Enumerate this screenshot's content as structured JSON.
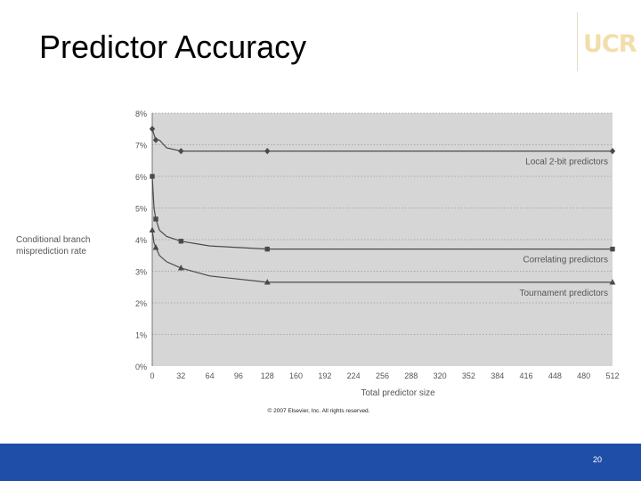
{
  "slide": {
    "title": "Predictor Accuracy",
    "logo_text": "UCR",
    "page_number": "20"
  },
  "colors": {
    "plot_bg": "#d6d6d6",
    "series": "#4a4a4a",
    "axis_text": "#555555",
    "footer": "#1f4ea8",
    "logo": "#f2deaa"
  },
  "chart_data": {
    "type": "line",
    "ylabel": [
      "Conditional branch",
      "misprediction rate"
    ],
    "xlabel": "Total predictor size",
    "copyright": "© 2007 Elsevier, Inc. All rights reserved.",
    "x_ticks": [
      0,
      32,
      64,
      96,
      128,
      160,
      192,
      224,
      256,
      288,
      320,
      352,
      384,
      416,
      448,
      480,
      512
    ],
    "y_ticks": [
      "0%",
      "1%",
      "2%",
      "3%",
      "4%",
      "5%",
      "6%",
      "7%",
      "8%"
    ],
    "xlim": [
      0,
      512
    ],
    "ylim": [
      0,
      8
    ],
    "grid": "horizontal-dotted",
    "series": [
      {
        "name": "Local 2-bit predictors",
        "marker": "diamond",
        "x": [
          0,
          4,
          8,
          16,
          32,
          128,
          512
        ],
        "y": [
          7.5,
          7.15,
          7.15,
          6.9,
          6.8,
          6.8,
          6.8
        ],
        "markers_x": [
          0,
          4,
          32,
          128,
          512
        ],
        "markers_y": [
          7.5,
          7.15,
          6.8,
          6.8,
          6.8
        ]
      },
      {
        "name": "Correlating predictors",
        "marker": "square",
        "x": [
          0,
          2,
          4,
          8,
          16,
          32,
          64,
          128,
          512
        ],
        "y": [
          6.0,
          5.0,
          4.65,
          4.3,
          4.1,
          3.95,
          3.8,
          3.7,
          3.7
        ],
        "markers_x": [
          0,
          4,
          32,
          128,
          512
        ],
        "markers_y": [
          6.0,
          4.65,
          3.95,
          3.7,
          3.7
        ]
      },
      {
        "name": "Tournament predictors",
        "marker": "triangle",
        "x": [
          0,
          2,
          4,
          8,
          16,
          32,
          64,
          128,
          512
        ],
        "y": [
          4.3,
          3.9,
          3.75,
          3.5,
          3.3,
          3.1,
          2.85,
          2.65,
          2.65
        ],
        "markers_x": [
          0,
          4,
          32,
          128,
          512
        ],
        "markers_y": [
          4.3,
          3.75,
          3.1,
          2.65,
          2.65
        ]
      }
    ]
  }
}
